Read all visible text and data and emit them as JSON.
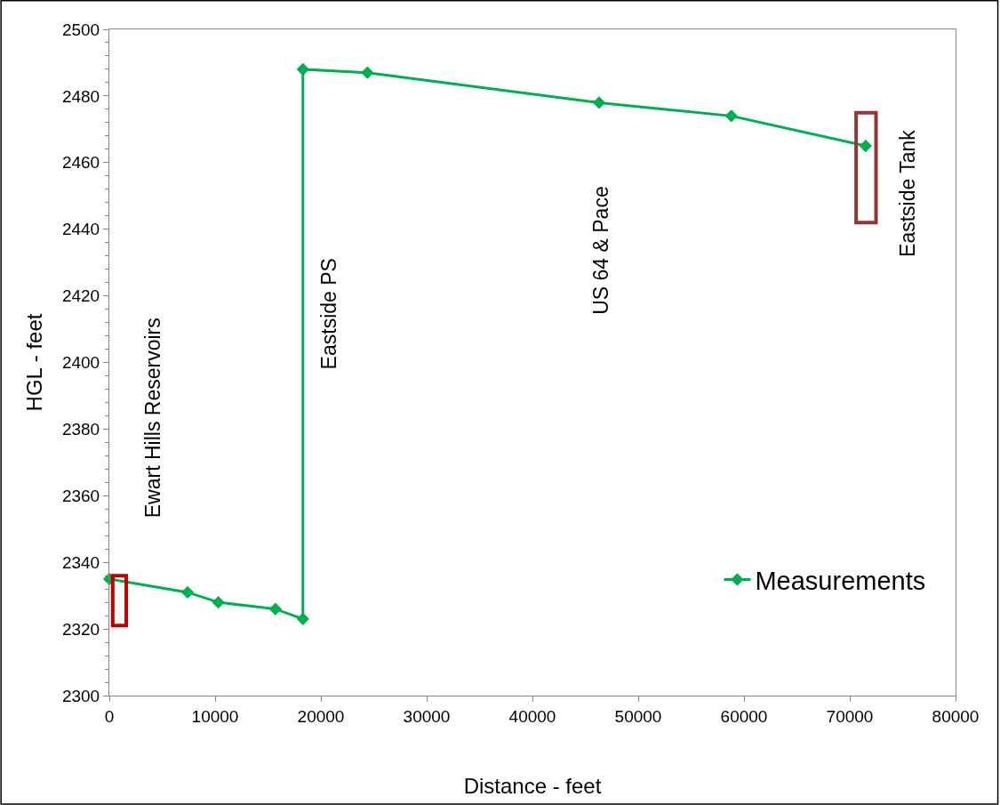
{
  "chart_data": {
    "type": "line",
    "xlabel": "Distance - feet",
    "ylabel": "HGL - feet",
    "series": [
      {
        "name": "Measurements",
        "color": "#00b050",
        "marker": "diamond",
        "x": [
          0,
          7400,
          10300,
          15700,
          18300,
          18300,
          24400,
          46300,
          58800,
          71500
        ],
        "values": [
          2335,
          2331,
          2328,
          2326,
          2323,
          2488,
          2487,
          2478,
          2474,
          2465
        ]
      }
    ],
    "annotations": [
      "Ewart Hills Reservoirs",
      "Eastside PS",
      "US 64 & Pace",
      "Eastside Tank"
    ],
    "xlim": [
      0,
      80000
    ],
    "xticks": [
      0,
      10000,
      20000,
      30000,
      40000,
      50000,
      60000,
      70000,
      80000
    ],
    "ylim": [
      2300,
      2500
    ],
    "yticks": [
      2300,
      2320,
      2340,
      2360,
      2380,
      2400,
      2420,
      2440,
      2460,
      2480,
      2500
    ],
    "legend": "bottom right",
    "line_style": "solid"
  }
}
